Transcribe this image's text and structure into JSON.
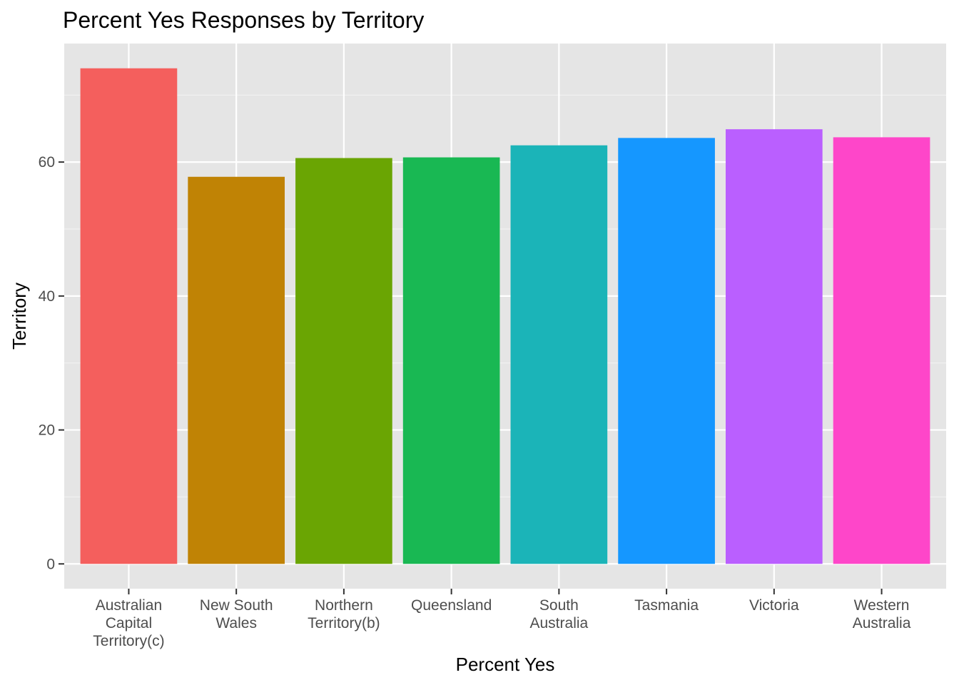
{
  "chart_data": {
    "type": "bar",
    "title": "Percent Yes Responses by Territory",
    "xlabel": "Percent Yes",
    "ylabel": "Territory",
    "categories": [
      "Australian Capital Territory(c)",
      "New South Wales",
      "Northern Territory(b)",
      "Queensland",
      "South Australia",
      "Tasmania",
      "Victoria",
      "Western Australia"
    ],
    "category_label_lines": [
      [
        "Australian",
        "Capital",
        "Territory(c)"
      ],
      [
        "New South",
        "Wales"
      ],
      [
        "Northern",
        "Territory(b)"
      ],
      [
        "Queensland"
      ],
      [
        "South",
        "Australia"
      ],
      [
        "Tasmania"
      ],
      [
        "Victoria"
      ],
      [
        "Western",
        "Australia"
      ]
    ],
    "values": [
      74.0,
      57.8,
      60.6,
      60.7,
      62.5,
      63.6,
      64.9,
      63.7
    ],
    "colors": [
      "#F8766D",
      "#C49A00",
      "#53B400",
      "#00C094",
      "#00B6EB",
      "#06A4FF",
      "#A58AFF",
      "#FB61D7"
    ],
    "bar_colors_rendered": [
      "#F45F5D",
      "#C08305",
      "#6AA503",
      "#19B853",
      "#1BB4B8",
      "#1597FF",
      "#BA5FFF",
      "#FE46C9"
    ],
    "ylim": [
      -3.7,
      77.7
    ],
    "yticks": [
      0,
      20,
      40,
      60
    ],
    "grid": true,
    "background": "#E5E5E5",
    "legend": "none"
  }
}
